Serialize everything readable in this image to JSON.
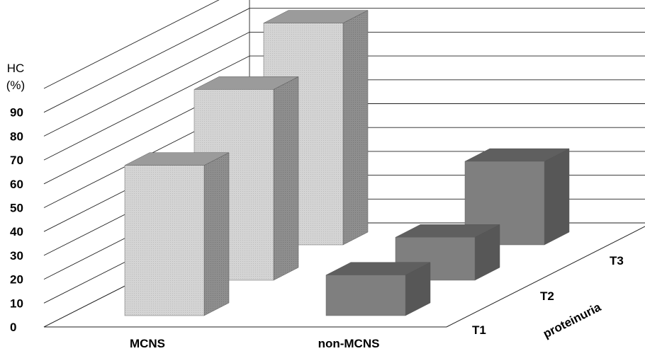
{
  "chart_data": {
    "type": "bar",
    "subtype": "3d-column",
    "title": "",
    "ylabel": "HC\n(%)",
    "ylim": [
      0,
      100
    ],
    "yticks": [
      0,
      10,
      20,
      30,
      40,
      50,
      60,
      70,
      80,
      90
    ],
    "categories": [
      "MCNS",
      "non-MCNS"
    ],
    "depth_axis_label": "proteinuria",
    "series": [
      {
        "name": "T1",
        "values": [
          63,
          17
        ]
      },
      {
        "name": "T2",
        "values": [
          80,
          18
        ]
      },
      {
        "name": "T3",
        "values": [
          93,
          35
        ]
      }
    ],
    "grid": true,
    "colors": {
      "MCNS_front": "#d2d2d2",
      "MCNS_side": "#8a8a8a",
      "MCNS_top": "#9b9b9b",
      "nonMCNS_front": "#7f7f7f",
      "nonMCNS_side": "#575757",
      "nonMCNS_top": "#5f5f5f"
    }
  }
}
